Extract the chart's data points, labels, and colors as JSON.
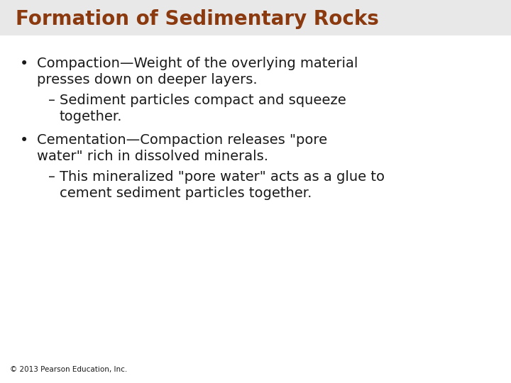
{
  "title": "Formation of Sedimentary Rocks",
  "title_color": "#8B3A10",
  "title_fontsize": 20,
  "background_color": "#FFFFFF",
  "text_color": "#1a1a1a",
  "body_fontsize": 14,
  "footer": "© 2013 Pearson Education, Inc.",
  "footer_fontsize": 7.5,
  "title_bar_color": "#DDDDDD",
  "bullets": [
    {
      "level": 1,
      "symbol": "•",
      "line1": "Compaction—Weight of the overlying material",
      "line2": "presses down on deeper layers."
    },
    {
      "level": 2,
      "symbol": "–",
      "line1": "Sediment particles compact and squeeze",
      "line2": "together."
    },
    {
      "level": 1,
      "symbol": "•",
      "line1": "Cementation—Compaction releases \"pore",
      "line2": "water\" rich in dissolved minerals."
    },
    {
      "level": 2,
      "symbol": "–",
      "line1": "This mineralized \"pore water\" acts as a glue to",
      "line2": "cement sediment particles together."
    }
  ]
}
